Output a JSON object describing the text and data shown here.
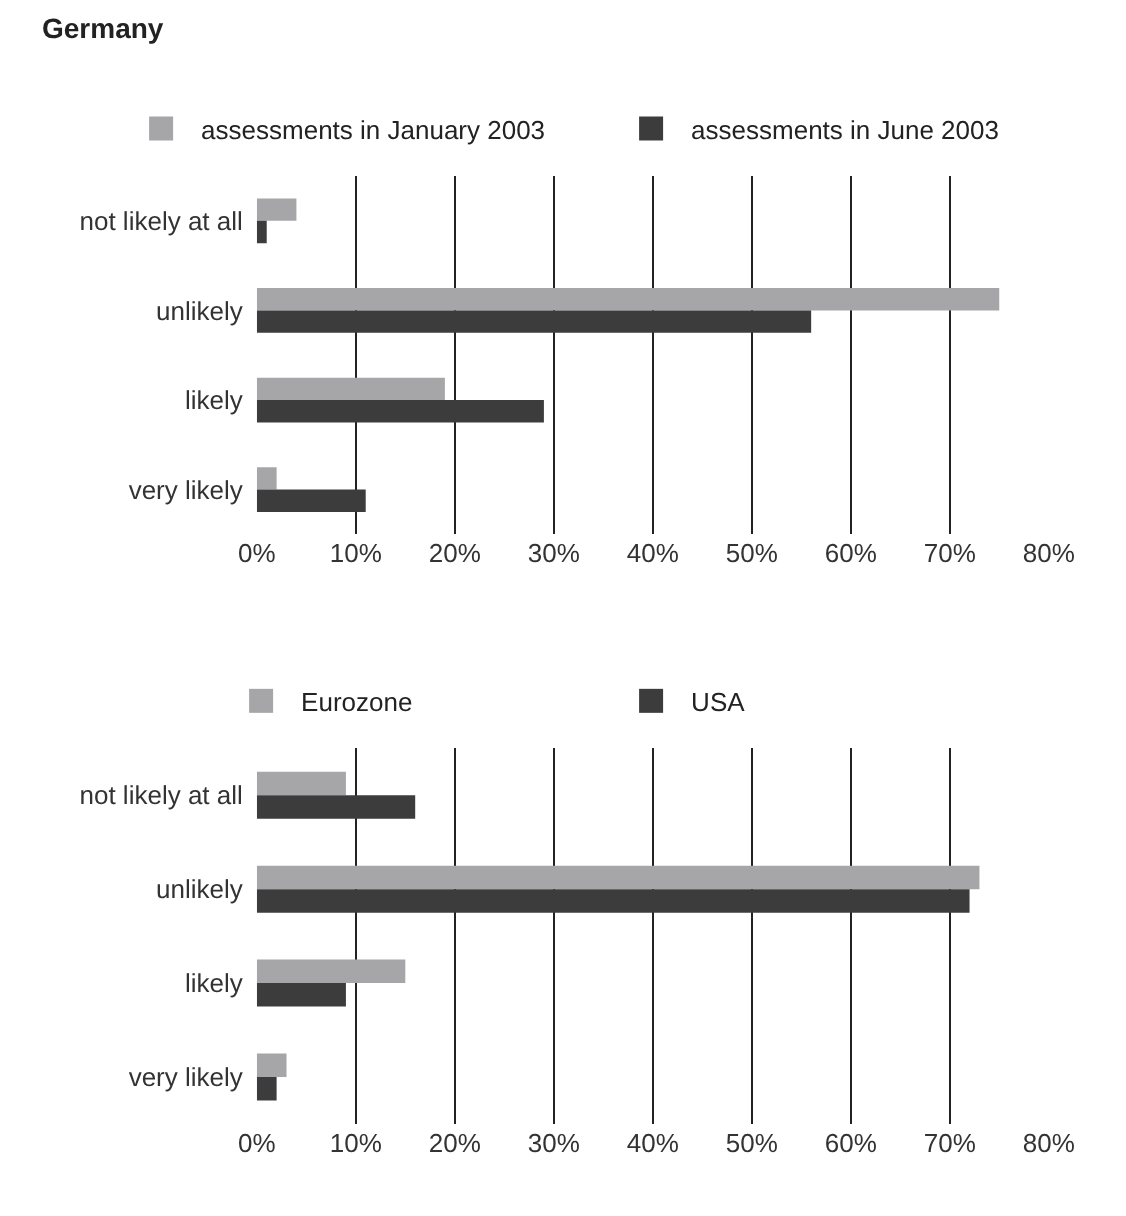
{
  "chart_data": [
    {
      "type": "bar",
      "orientation": "horizontal",
      "title": "Germany",
      "categories": [
        "not likely at all",
        "unlikely",
        "likely",
        "very likely"
      ],
      "series": [
        {
          "name": "assessments in January 2003",
          "color": "#a6a6a8",
          "values": [
            4,
            75,
            19,
            2
          ]
        },
        {
          "name": "assessments in June 2003",
          "color": "#3c3c3c",
          "values": [
            1,
            56,
            29,
            11
          ]
        }
      ],
      "xlim": [
        0,
        80
      ],
      "xticks": [
        {
          "value": 0,
          "label": "0%"
        },
        {
          "value": 10,
          "label": "10%"
        },
        {
          "value": 20,
          "label": "20%"
        },
        {
          "value": 30,
          "label": "30%"
        },
        {
          "value": 40,
          "label": "40%"
        },
        {
          "value": 50,
          "label": "50%"
        },
        {
          "value": 60,
          "label": "60%"
        },
        {
          "value": 70,
          "label": "70%"
        },
        {
          "value": 80,
          "label": "80%"
        }
      ],
      "grid": "x",
      "legend": "top"
    },
    {
      "type": "bar",
      "orientation": "horizontal",
      "categories": [
        "not likely at all",
        "unlikely",
        "likely",
        "very likely"
      ],
      "series": [
        {
          "name": "Eurozone",
          "color": "#a6a6a8",
          "values": [
            9,
            73,
            15,
            3
          ]
        },
        {
          "name": "USA",
          "color": "#3c3c3c",
          "values": [
            16,
            72,
            9,
            2
          ]
        }
      ],
      "xlim": [
        0,
        80
      ],
      "xticks": [
        {
          "value": 0,
          "label": "0%"
        },
        {
          "value": 10,
          "label": "10%"
        },
        {
          "value": 20,
          "label": "20%"
        },
        {
          "value": 30,
          "label": "30%"
        },
        {
          "value": 40,
          "label": "40%"
        },
        {
          "value": 50,
          "label": "50%"
        },
        {
          "value": 60,
          "label": "60%"
        },
        {
          "value": 70,
          "label": "70%"
        },
        {
          "value": 80,
          "label": "80%"
        }
      ],
      "grid": "x",
      "legend": "top"
    }
  ]
}
